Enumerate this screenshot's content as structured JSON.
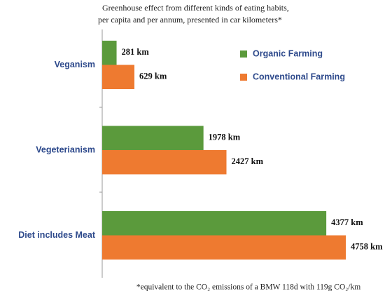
{
  "chart_data": {
    "type": "bar",
    "orientation": "horizontal",
    "title": [
      "Greenhouse effect from different kinds of eating habits,",
      "per capita and per annum, presented in car kilometers*"
    ],
    "footnote": "*equivalent to the CO₂ emissions of a BMW 118d with 119g CO₂/km",
    "categories": [
      "Veganism",
      "Vegeterianism",
      "Diet includes Meat"
    ],
    "series": [
      {
        "name": "Organic Farming",
        "color": "#5b9a3c",
        "values": [
          281,
          1978,
          4377
        ],
        "value_labels": [
          "281 km",
          "1978 km",
          "4377 km"
        ]
      },
      {
        "name": "Conventional Farming",
        "color": "#ee7a30",
        "values": [
          629,
          2427,
          4758
        ],
        "value_labels": [
          "629 km",
          "2427 km",
          "4758 km"
        ]
      }
    ],
    "legend": "upper right"
  }
}
